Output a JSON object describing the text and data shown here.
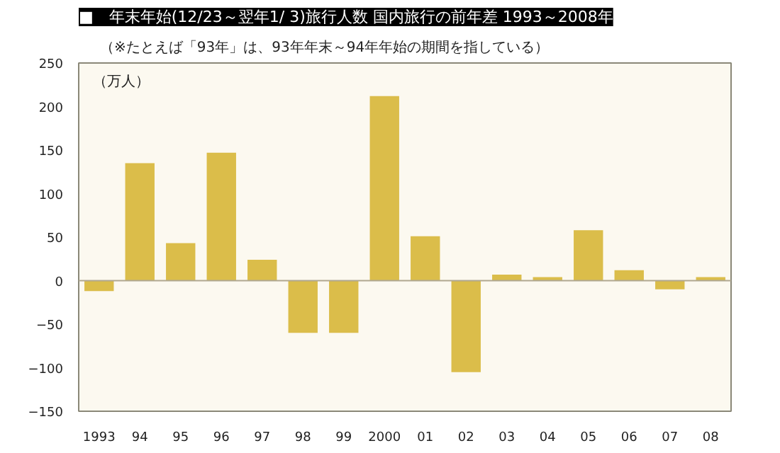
{
  "chart_data": {
    "type": "bar",
    "title": "■　年末年始(12/23～翌年1/ 3)旅行人数 国内旅行の前年差 1993～2008年",
    "subtitle": "（※たとえば「93年」は、93年年末～94年年始の期間を指している）",
    "ylabel": "（万人）",
    "categories": [
      "1993",
      "94",
      "95",
      "96",
      "97",
      "98",
      "99",
      "2000",
      "01",
      "02",
      "03",
      "04",
      "05",
      "06",
      "07",
      "08"
    ],
    "values": [
      -12,
      135,
      43,
      147,
      24,
      -60,
      -60,
      212,
      51,
      -105,
      7,
      4,
      58,
      12,
      -10,
      4
    ],
    "color": "#dbbd4a",
    "ylim": [
      -150,
      250
    ],
    "yticks": [
      -150,
      -100,
      -50,
      0,
      50,
      100,
      150,
      200,
      250
    ],
    "ref_lines": [
      {
        "axis": "y",
        "value": 0,
        "color": "#b0a890"
      }
    ],
    "grid": false
  }
}
